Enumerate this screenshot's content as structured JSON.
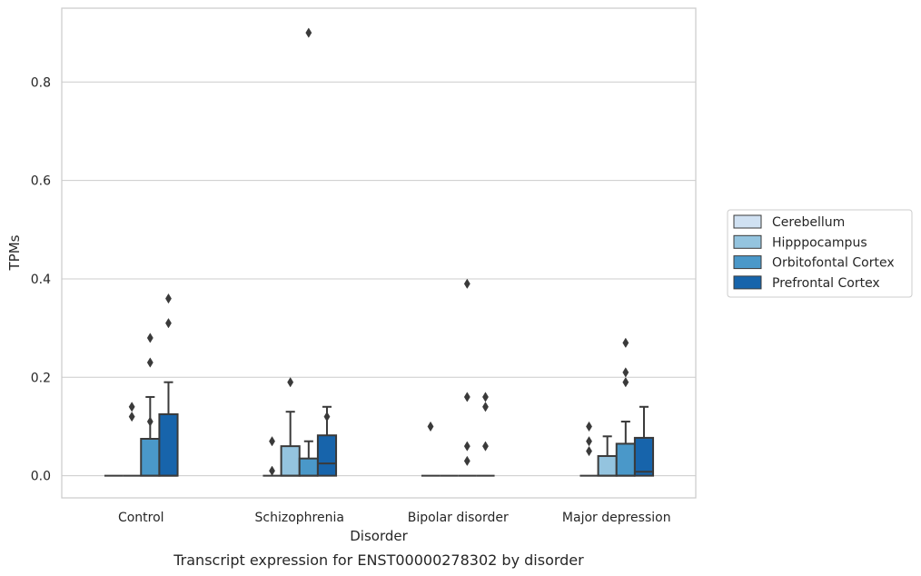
{
  "chart_data": {
    "type": "box",
    "xlabel": "Disorder",
    "ylabel": "TPMs",
    "caption": "Transcript expression for ENST00000278302 by disorder",
    "categories": [
      "Control",
      "Schizophrenia",
      "Bipolar disorder",
      "Major depression"
    ],
    "ylim": [
      -0.045,
      0.95
    ],
    "yticks": [
      0.0,
      0.2,
      0.4,
      0.6,
      0.8
    ],
    "ytick_labels": [
      "0.0",
      "0.2",
      "0.4",
      "0.6",
      "0.8"
    ],
    "grid": "horizontal",
    "legend_position": "right",
    "series": [
      {
        "name": "Cerebellum",
        "color": "#d0e1f2",
        "boxes": [
          {
            "q1": 0,
            "median": 0,
            "q3": 0,
            "whislo": 0,
            "whishi": 0,
            "fliers": []
          },
          {
            "q1": 0,
            "median": 0,
            "q3": 0,
            "whislo": 0,
            "whishi": 0,
            "fliers": [
              0.01,
              0.07
            ]
          },
          {
            "q1": 0,
            "median": 0,
            "q3": 0,
            "whislo": 0,
            "whishi": 0,
            "fliers": [
              0.1
            ]
          },
          {
            "q1": 0,
            "median": 0,
            "q3": 0,
            "whislo": 0,
            "whishi": 0,
            "fliers": [
              0.05,
              0.07,
              0.1
            ]
          }
        ]
      },
      {
        "name": "Hipppocampus",
        "color": "#94c4df",
        "boxes": [
          {
            "q1": 0,
            "median": 0,
            "q3": 0,
            "whislo": 0,
            "whishi": 0,
            "fliers": [
              0.12,
              0.14
            ]
          },
          {
            "q1": 0,
            "median": 0,
            "q3": 0.06,
            "whislo": 0,
            "whishi": 0.13,
            "fliers": [
              0.19
            ]
          },
          {
            "q1": 0,
            "median": 0,
            "q3": 0,
            "whislo": 0,
            "whishi": 0,
            "fliers": []
          },
          {
            "q1": 0,
            "median": 0,
            "q3": 0.04,
            "whislo": 0,
            "whishi": 0.08,
            "fliers": []
          }
        ]
      },
      {
        "name": "Orbitofontal Cortex",
        "color": "#4a98c9",
        "boxes": [
          {
            "q1": 0,
            "median": 0,
            "q3": 0.075,
            "whislo": 0,
            "whishi": 0.16,
            "fliers": [
              0.11,
              0.23,
              0.28
            ]
          },
          {
            "q1": 0,
            "median": 0,
            "q3": 0.035,
            "whislo": 0,
            "whishi": 0.07,
            "fliers": [
              0.9
            ]
          },
          {
            "q1": 0,
            "median": 0,
            "q3": 0,
            "whislo": 0,
            "whishi": 0,
            "fliers": [
              0.03,
              0.06,
              0.16,
              0.39
            ]
          },
          {
            "q1": 0,
            "median": 0,
            "q3": 0.065,
            "whislo": 0,
            "whishi": 0.11,
            "fliers": [
              0.19,
              0.21,
              0.27
            ]
          }
        ]
      },
      {
        "name": "Prefrontal Cortex",
        "color": "#1764ab",
        "boxes": [
          {
            "q1": 0,
            "median": 0,
            "q3": 0.125,
            "whislo": 0,
            "whishi": 0.19,
            "fliers": [
              0.31,
              0.36
            ]
          },
          {
            "q1": 0,
            "median": 0.025,
            "q3": 0.082,
            "whislo": 0,
            "whishi": 0.14,
            "fliers": [
              0.12
            ]
          },
          {
            "q1": 0,
            "median": 0,
            "q3": 0,
            "whislo": 0,
            "whishi": 0,
            "fliers": [
              0.06,
              0.14,
              0.16
            ]
          },
          {
            "q1": 0,
            "median": 0.008,
            "q3": 0.077,
            "whislo": 0,
            "whishi": 0.14,
            "fliers": []
          }
        ]
      }
    ]
  }
}
